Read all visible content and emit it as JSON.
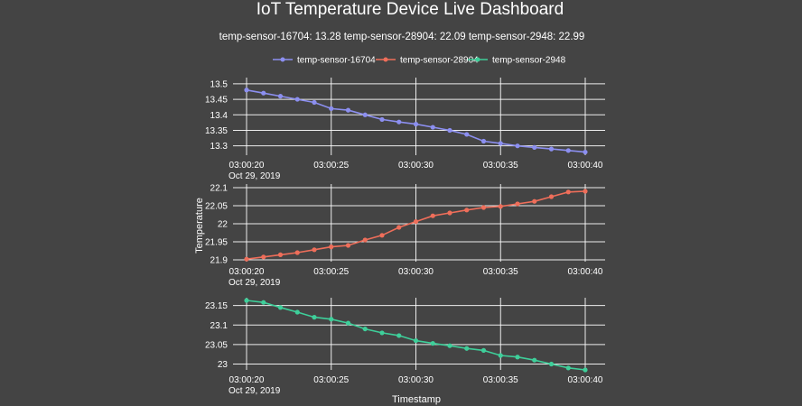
{
  "page": {
    "title": "IoT Temperature Device Live Dashboard",
    "subtitle": "temp-sensor-16704: 13.28   temp-sensor-28904: 22.09   temp-sensor-2948: 22.99"
  },
  "chart_data": {
    "type": "line",
    "title": "IoT Temperature Device Live Dashboard",
    "xlabel": "Timestamp",
    "ylabel": "Temperature",
    "legend_position": "top",
    "x_seconds": [
      20,
      21,
      22,
      23,
      24,
      25,
      26,
      27,
      28,
      29,
      30,
      31,
      32,
      33,
      34,
      35,
      36,
      37,
      38,
      39,
      40
    ],
    "x_ticks": [
      {
        "value": 20,
        "label": "03:00:20",
        "date": "Oct 29, 2019"
      },
      {
        "value": 25,
        "label": "03:00:25",
        "date": ""
      },
      {
        "value": 30,
        "label": "03:00:30",
        "date": ""
      },
      {
        "value": 35,
        "label": "03:00:35",
        "date": ""
      },
      {
        "value": 40,
        "label": "03:00:40",
        "date": ""
      }
    ],
    "series": [
      {
        "name": "temp-sensor-16704",
        "color": "#8c8ff0",
        "values": [
          13.48,
          13.47,
          13.46,
          13.45,
          13.44,
          13.42,
          13.415,
          13.4,
          13.385,
          13.377,
          13.37,
          13.36,
          13.35,
          13.337,
          13.315,
          13.308,
          13.3,
          13.295,
          13.29,
          13.285,
          13.28
        ],
        "ylim": [
          13.27,
          13.52
        ],
        "y_ticks": [
          13.3,
          13.35,
          13.4,
          13.45,
          13.5
        ],
        "y_tick_labels": [
          "13.3",
          "13.35",
          "13.4",
          "13.45",
          "13.5"
        ]
      },
      {
        "name": "temp-sensor-28904",
        "color": "#ef6e5a",
        "values": [
          21.902,
          21.908,
          21.914,
          21.92,
          21.928,
          21.936,
          21.94,
          21.955,
          21.968,
          21.99,
          22.006,
          22.022,
          22.03,
          22.038,
          22.045,
          22.048,
          22.055,
          22.062,
          22.075,
          22.088,
          22.09
        ],
        "ylim": [
          21.895,
          22.11
        ],
        "y_ticks": [
          21.9,
          21.95,
          22,
          22.05,
          22.1
        ],
        "y_tick_labels": [
          "21.9",
          "21.95",
          "22",
          "22.05",
          "22.1"
        ]
      },
      {
        "name": "temp-sensor-2948",
        "color": "#3ecf9a",
        "values": [
          23.163,
          23.158,
          23.145,
          23.133,
          23.12,
          23.115,
          23.105,
          23.09,
          23.08,
          23.073,
          23.06,
          23.053,
          23.047,
          23.04,
          23.035,
          23.022,
          23.018,
          23.01,
          23.0,
          22.99,
          22.985
        ],
        "ylim": [
          22.985,
          23.17
        ],
        "y_ticks": [
          23,
          23.05,
          23.1,
          23.15
        ],
        "y_tick_labels": [
          "23",
          "23.05",
          "23.1",
          "23.15"
        ]
      }
    ]
  }
}
